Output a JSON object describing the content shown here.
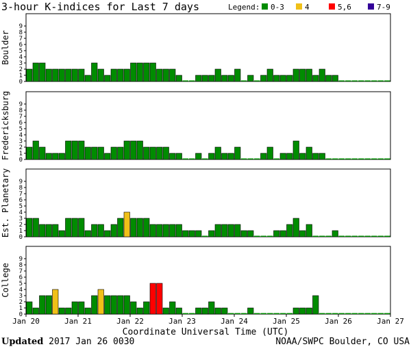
{
  "chart_data": {
    "type": "bar",
    "title": "3-hour K-indices for Last 7 days",
    "legend": {
      "label": "Legend:",
      "items": [
        {
          "label": "0-3",
          "color": "#008c00"
        },
        {
          "label": "4",
          "color": "#f0c018"
        },
        {
          "label": "5,6",
          "color": "#ff0000"
        },
        {
          "label": "7-9",
          "color": "#330099"
        }
      ]
    },
    "xlabel": "Coordinate Universal Time (UTC)",
    "x_ticks": [
      "Jan 20",
      "Jan 21",
      "Jan 22",
      "Jan 23",
      "Jan 24",
      "Jan 25",
      "Jan 26",
      "Jan 27"
    ],
    "ylim": [
      0,
      9
    ],
    "y_ticks": [
      0,
      1,
      2,
      3,
      4,
      5,
      6,
      7,
      8,
      9
    ],
    "panels": [
      {
        "name": "Boulder",
        "values": [
          2,
          3,
          3,
          2,
          2,
          2,
          2,
          2,
          2,
          1,
          3,
          2,
          1,
          2,
          2,
          2,
          3,
          3,
          3,
          3,
          2,
          2,
          2,
          1,
          0,
          0,
          1,
          1,
          1,
          2,
          1,
          1,
          2,
          0,
          1,
          0,
          1,
          2,
          1,
          1,
          1,
          2,
          2,
          2,
          1,
          2,
          1,
          1,
          0,
          0,
          0,
          0,
          0,
          0,
          0,
          0
        ]
      },
      {
        "name": "Fredericksburg",
        "values": [
          2,
          3,
          2,
          1,
          1,
          1,
          3,
          3,
          3,
          2,
          2,
          2,
          1,
          2,
          2,
          3,
          3,
          3,
          2,
          2,
          2,
          2,
          1,
          1,
          0,
          0,
          1,
          0,
          1,
          2,
          1,
          1,
          2,
          0,
          0,
          0,
          1,
          2,
          0,
          1,
          1,
          3,
          1,
          2,
          1,
          1,
          0,
          0,
          0,
          0,
          0,
          0,
          0,
          0,
          0,
          0
        ]
      },
      {
        "name": "Est. Planetary",
        "values": [
          3,
          3,
          2,
          2,
          2,
          1,
          3,
          3,
          3,
          1,
          2,
          2,
          1,
          2,
          3,
          4,
          3,
          3,
          3,
          2,
          2,
          2,
          2,
          2,
          1,
          1,
          1,
          0,
          1,
          2,
          2,
          2,
          2,
          1,
          1,
          0,
          0,
          0,
          1,
          1,
          2,
          3,
          1,
          2,
          0,
          0,
          0,
          1,
          0,
          0,
          0,
          0,
          0,
          0,
          0,
          0
        ]
      },
      {
        "name": "College",
        "values": [
          2,
          1,
          3,
          3,
          4,
          1,
          1,
          2,
          2,
          1,
          3,
          4,
          3,
          3,
          3,
          3,
          2,
          1,
          2,
          5,
          5,
          1,
          2,
          1,
          0,
          0,
          1,
          1,
          2,
          1,
          1,
          0,
          0,
          0,
          1,
          0,
          0,
          0,
          0,
          0,
          0,
          1,
          1,
          1,
          3,
          0,
          0,
          0,
          0,
          0,
          0,
          0,
          0,
          0,
          0,
          0
        ]
      }
    ]
  },
  "footer": {
    "updated_label": "Updated",
    "updated_value": "2017 Jan 26 0030",
    "source": "NOAA/SWPC Boulder, CO USA"
  }
}
